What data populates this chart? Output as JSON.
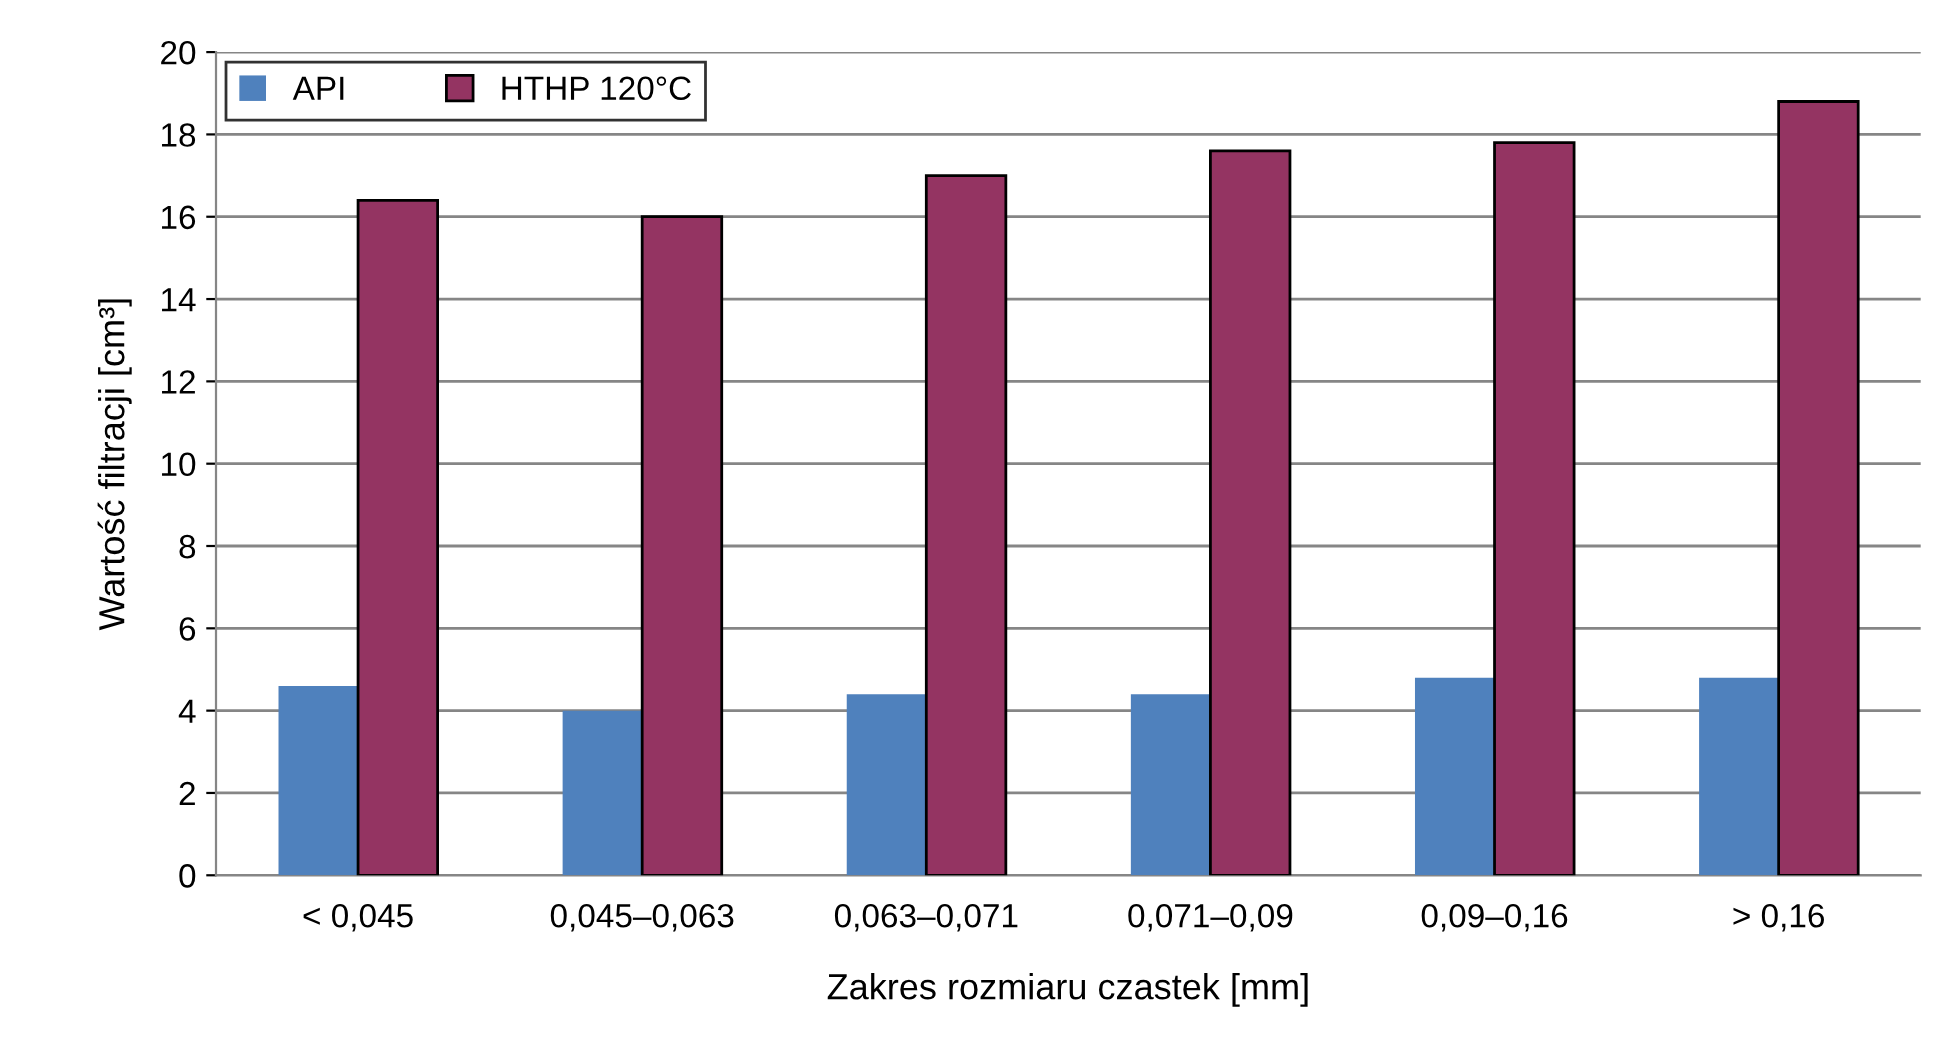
{
  "chart_data": {
    "type": "bar",
    "xlabel": "Zakres rozmiaru czastek [mm]",
    "ylabel": "Wartość filtracji [cm³]",
    "categories": [
      "< 0,045",
      "0,045–0,063",
      "0,063–0,071",
      "0,071–0,09",
      "0,09–0,16",
      "> 0,16"
    ],
    "series": [
      {
        "name": "API",
        "color": "#4f81bd",
        "values": [
          4.6,
          4.0,
          4.4,
          4.4,
          4.8,
          4.8
        ]
      },
      {
        "name": "HTHP 120°C",
        "color": "#943462",
        "values": [
          16.4,
          16.0,
          17.0,
          17.6,
          17.8,
          18.8
        ]
      }
    ],
    "ylim": [
      0,
      20
    ],
    "yticks": [
      0,
      2,
      4,
      6,
      8,
      10,
      12,
      14,
      16,
      18,
      20
    ],
    "grid": "y",
    "legend": "top left"
  }
}
